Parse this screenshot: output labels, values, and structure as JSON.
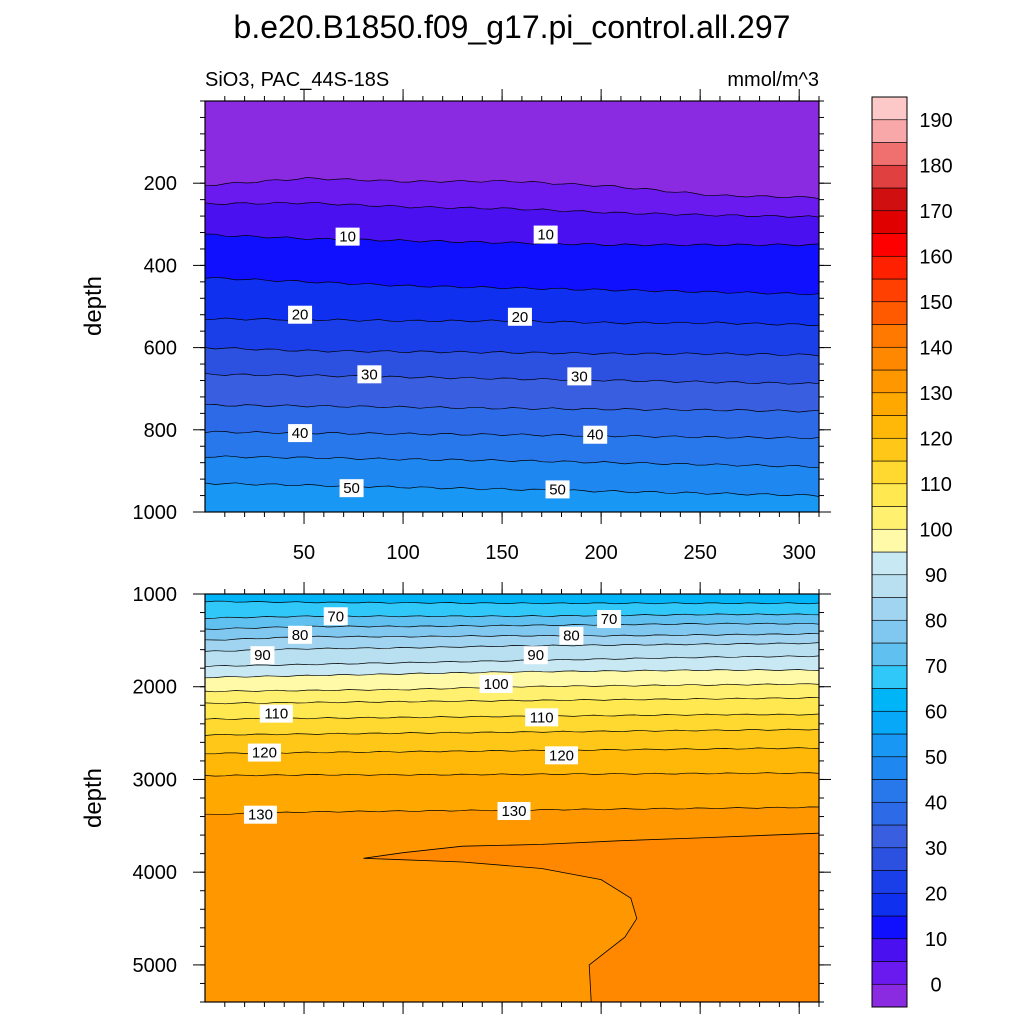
{
  "chart_data": {
    "type": "contour",
    "title": "b.e20.B1850.f09_g17.pi_control.all.297",
    "left_string": "SiO3, PAC_44S-18S",
    "right_string": "mmol/m^3",
    "ylabel": "depth",
    "x_ticks": [
      50,
      100,
      150,
      200,
      250,
      300
    ],
    "xlim": [
      0,
      310
    ],
    "panels": [
      {
        "id": "upper",
        "ylim": [
          1000,
          0
        ],
        "y_ticks": [
          200,
          400,
          600,
          800,
          1000
        ],
        "show_x_tick_labels": true,
        "contours": [
          {
            "level": 0,
            "depths": [
              205,
              188,
              196,
              195,
              208,
              230,
              235
            ]
          },
          {
            "level": 5,
            "depths": [
              250,
              248,
              258,
              262,
              272,
              278,
              282
            ]
          },
          {
            "level": 10,
            "depths": [
              325,
              335,
              340,
              345,
              350,
              350,
              350
            ]
          },
          {
            "level": 15,
            "depths": [
              430,
              440,
              450,
              455,
              460,
              465,
              470
            ]
          },
          {
            "level": 20,
            "depths": [
              530,
              532,
              535,
              535,
              540,
              540,
              545
            ]
          },
          {
            "level": 25,
            "depths": [
              600,
              608,
              610,
              612,
              615,
              615,
              618
            ]
          },
          {
            "level": 30,
            "depths": [
              665,
              668,
              672,
              676,
              680,
              684,
              688
            ]
          },
          {
            "level": 35,
            "depths": [
              740,
              742,
              745,
              748,
              750,
              752,
              755
            ]
          },
          {
            "level": 40,
            "depths": [
              805,
              808,
              810,
              812,
              815,
              818,
              820
            ]
          },
          {
            "level": 45,
            "depths": [
              865,
              868,
              872,
              875,
              880,
              885,
              890
            ]
          },
          {
            "level": 50,
            "depths": [
              930,
              935,
              940,
              945,
              950,
              955,
              960
            ]
          }
        ],
        "labels": [
          {
            "text": "10",
            "x": 72,
            "depth": 330
          },
          {
            "text": "10",
            "x": 172,
            "depth": 325
          },
          {
            "text": "20",
            "x": 48,
            "depth": 520
          },
          {
            "text": "20",
            "x": 159,
            "depth": 525
          },
          {
            "text": "30",
            "x": 83,
            "depth": 665
          },
          {
            "text": "30",
            "x": 189,
            "depth": 670
          },
          {
            "text": "40",
            "x": 48,
            "depth": 808
          },
          {
            "text": "40",
            "x": 197,
            "depth": 812
          },
          {
            "text": "50",
            "x": 74,
            "depth": 942
          },
          {
            "text": "50",
            "x": 178,
            "depth": 945
          }
        ]
      },
      {
        "id": "lower",
        "ylim": [
          5400,
          1000
        ],
        "y_ticks": [
          1000,
          2000,
          3000,
          4000,
          5000
        ],
        "show_x_tick_labels": false,
        "contours": [
          {
            "level": 65,
            "depths": [
              1080,
              1090,
              1095,
              1100,
              1100,
              1100,
              1100
            ]
          },
          {
            "level": 70,
            "depths": [
              1260,
              1240,
              1240,
              1240,
              1230,
              1220,
              1220
            ]
          },
          {
            "level": 75,
            "depths": [
              1380,
              1350,
              1350,
              1340,
              1330,
              1320,
              1320
            ]
          },
          {
            "level": 80,
            "depths": [
              1500,
              1460,
              1460,
              1450,
              1450,
              1440,
              1430
            ]
          },
          {
            "level": 85,
            "depths": [
              1620,
              1590,
              1580,
              1560,
              1550,
              1540,
              1530
            ]
          },
          {
            "level": 90,
            "depths": [
              1780,
              1760,
              1740,
              1720,
              1700,
              1680,
              1670
            ]
          },
          {
            "level": 95,
            "depths": [
              1900,
              1880,
              1860,
              1840,
              1830,
              1820,
              1820
            ]
          },
          {
            "level": 100,
            "depths": [
              2050,
              2040,
              2030,
              2000,
              1990,
              1980,
              1970
            ]
          },
          {
            "level": 105,
            "depths": [
              2180,
              2170,
              2160,
              2150,
              2140,
              2130,
              2120
            ]
          },
          {
            "level": 110,
            "depths": [
              2350,
              2340,
              2330,
              2320,
              2310,
              2300,
              2300
            ]
          },
          {
            "level": 115,
            "depths": [
              2520,
              2510,
              2500,
              2490,
              2480,
              2470,
              2460
            ]
          },
          {
            "level": 120,
            "depths": [
              2720,
              2710,
              2700,
              2690,
              2680,
              2670,
              2660
            ]
          },
          {
            "level": 125,
            "depths": [
              2960,
              2950,
              2950,
              2945,
              2940,
              2935,
              2930
            ]
          },
          {
            "level": 130,
            "depths": [
              3380,
              3350,
              3340,
              3330,
              3320,
              3310,
              3300
            ]
          }
        ],
        "labels": [
          {
            "text": "70",
            "x": 66,
            "depth": 1240
          },
          {
            "text": "70",
            "x": 204,
            "depth": 1270
          },
          {
            "text": "80",
            "x": 48,
            "depth": 1440
          },
          {
            "text": "80",
            "x": 185,
            "depth": 1450
          },
          {
            "text": "90",
            "x": 29,
            "depth": 1660
          },
          {
            "text": "90",
            "x": 167,
            "depth": 1660
          },
          {
            "text": "100",
            "x": 147,
            "depth": 1970
          },
          {
            "text": "110",
            "x": 36,
            "depth": 2290
          },
          {
            "text": "110",
            "x": 170,
            "depth": 2330
          },
          {
            "text": "120",
            "x": 30,
            "depth": 2710
          },
          {
            "text": "120",
            "x": 180,
            "depth": 2740
          },
          {
            "text": "130",
            "x": 28,
            "depth": 3380
          },
          {
            "text": "130",
            "x": 156,
            "depth": 3340
          }
        ],
        "region_135": {
          "upper_boundary": [
            [
              80,
              3850
            ],
            [
              100,
              3790
            ],
            [
              130,
              3720
            ],
            [
              170,
              3700
            ],
            [
              210,
              3660
            ],
            [
              250,
              3630
            ],
            [
              310,
              3580
            ]
          ],
          "left_boundary": [
            [
              80,
              3850
            ],
            [
              130,
              3890
            ],
            [
              170,
              3960
            ],
            [
              200,
              4080
            ],
            [
              215,
              4280
            ],
            [
              218,
              4500
            ],
            [
              212,
              4700
            ],
            [
              194,
              5000
            ],
            [
              195,
              5400
            ]
          ]
        }
      }
    ],
    "colorbar": {
      "levels": [
        0,
        5,
        10,
        15,
        20,
        25,
        30,
        35,
        40,
        45,
        50,
        55,
        60,
        65,
        70,
        75,
        80,
        85,
        90,
        95,
        100,
        105,
        110,
        115,
        120,
        125,
        130,
        135,
        140,
        145,
        150,
        155,
        160,
        165,
        170,
        175,
        180,
        185,
        190
      ],
      "labels": [
        "0",
        "10",
        "20",
        "30",
        "40",
        "50",
        "60",
        "70",
        "80",
        "90",
        "100",
        "110",
        "120",
        "130",
        "140",
        "150",
        "160",
        "170",
        "180",
        "190"
      ],
      "colors": [
        "#8a2be2",
        "#6a1aee",
        "#4a10f0",
        "#1010ff",
        "#1030f0",
        "#1a3ee8",
        "#2c50e0",
        "#3a5ee0",
        "#2c6ae8",
        "#2878ec",
        "#1e88f0",
        "#1898f4",
        "#08a8f8",
        "#00b4f8",
        "#30c8f8",
        "#60c0f0",
        "#80c8f0",
        "#a0d4f0",
        "#b8e0f0",
        "#c8e8f4",
        "#fffaa8",
        "#fff070",
        "#ffe850",
        "#ffd830",
        "#ffc818",
        "#ffb808",
        "#ffa800",
        "#ff9800",
        "#ff8800",
        "#ff7800",
        "#ff5a00",
        "#ff4000",
        "#ff2000",
        "#ff0000",
        "#e00000",
        "#d01010",
        "#e04040",
        "#f07070",
        "#f8a8a8",
        "#fcc8c8"
      ]
    }
  }
}
